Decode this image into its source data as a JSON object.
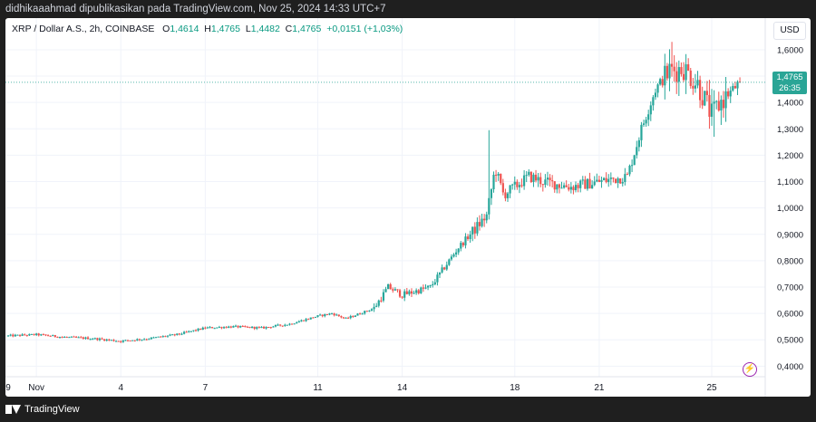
{
  "header": {
    "publisher_text": "didhikaaahmad dipublikasikan pada TradingView.com, Nov 25, 2024 14:33 UTC+7"
  },
  "symbol": {
    "name": "XRP / Dollar A.S., 2h, COINBASE",
    "open_label": "O",
    "open": "1,4614",
    "high_label": "H",
    "high": "1,4765",
    "low_label": "L",
    "low": "1,4482",
    "close_label": "C",
    "close": "1,4765",
    "change": "+0,0151 (+1,03%)"
  },
  "currency_button": "USD",
  "last_price": {
    "price": "1,4765",
    "countdown": "26:35"
  },
  "footer": {
    "brand": "TradingView"
  },
  "colors": {
    "up": "#26a69a",
    "down": "#ef5350",
    "axis_text": "#131722",
    "grid": "#f0f3fa",
    "price_line": "#2aa596"
  },
  "chart_data": {
    "type": "candlestick",
    "title": "XRP / Dollar A.S., 2h, COINBASE",
    "y_ticks": [
      "1,6000",
      "1,5000",
      "1,4000",
      "1,3000",
      "1,2000",
      "1,1000",
      "1,0000",
      "0,9000",
      "0,8000",
      "0,7000",
      "0,6000",
      "0,5000",
      "0,4000"
    ],
    "y_tick_values": [
      1.6,
      1.5,
      1.4,
      1.3,
      1.2,
      1.1,
      1.0,
      0.9,
      0.8,
      0.7,
      0.6,
      0.5,
      0.4
    ],
    "x_ticks": [
      "9",
      "Nov",
      "4",
      "7",
      "11",
      "14",
      "18",
      "21",
      "25"
    ],
    "x_tick_days": [
      -0.1,
      1,
      4,
      7,
      11,
      14,
      18,
      21,
      25
    ],
    "ylim": [
      0.36,
      1.72
    ],
    "xlim": [
      -0.1,
      26.9
    ],
    "last_price": 1.4765,
    "price_path": [
      [
        0,
        0.515
      ],
      [
        1,
        0.52
      ],
      [
        2,
        0.51
      ],
      [
        3,
        0.505
      ],
      [
        4,
        0.495
      ],
      [
        5,
        0.505
      ],
      [
        6,
        0.52
      ],
      [
        7,
        0.545
      ],
      [
        8,
        0.55
      ],
      [
        9,
        0.545
      ],
      [
        10,
        0.56
      ],
      [
        11,
        0.59
      ],
      [
        11.5,
        0.6
      ],
      [
        12,
        0.58
      ],
      [
        13,
        0.62
      ],
      [
        13.5,
        0.7
      ],
      [
        14,
        0.67
      ],
      [
        15,
        0.7
      ],
      [
        16,
        0.85
      ],
      [
        17,
        0.97
      ],
      [
        17.3,
        1.15
      ],
      [
        17.6,
        1.05
      ],
      [
        18,
        1.08
      ],
      [
        18.5,
        1.12
      ],
      [
        19,
        1.1
      ],
      [
        20,
        1.08
      ],
      [
        21,
        1.1
      ],
      [
        22,
        1.12
      ],
      [
        22.5,
        1.3
      ],
      [
        23,
        1.45
      ],
      [
        23.5,
        1.52
      ],
      [
        24,
        1.53
      ],
      [
        24.5,
        1.47
      ],
      [
        25,
        1.35
      ],
      [
        25.3,
        1.4
      ],
      [
        26,
        1.4765
      ]
    ]
  }
}
